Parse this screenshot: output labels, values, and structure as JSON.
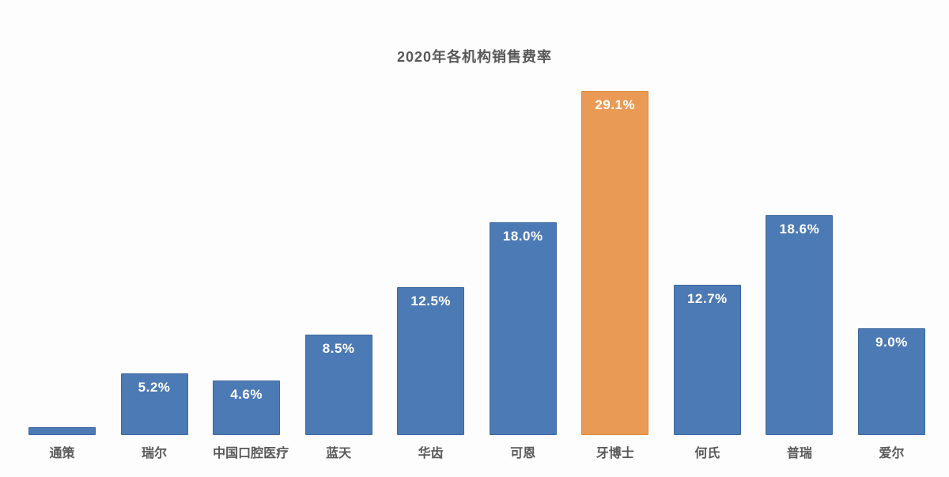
{
  "chart_data": {
    "type": "bar",
    "title": "2020年各机构销售费率",
    "xlabel": "",
    "ylabel": "",
    "categories": [
      "通策",
      "瑞尔",
      "中国口腔医疗",
      "蓝天",
      "华齿",
      "可恩",
      "牙博士",
      "何氏",
      "普瑞",
      "爱尔"
    ],
    "values": [
      0.7,
      5.2,
      4.6,
      8.5,
      12.5,
      18.0,
      29.1,
      12.7,
      18.6,
      9.0
    ],
    "data_labels": [
      "",
      "5.2%",
      "4.6%",
      "8.5%",
      "12.5%",
      "18.0%",
      "29.1%",
      "12.7%",
      "18.6%",
      "9.0%"
    ],
    "highlight_index": 6,
    "ylim": [
      0,
      30
    ],
    "grid": false,
    "legend": false,
    "axis_line": false,
    "colors": {
      "bar_fill": "#4C7AB4",
      "bar_border": "#3E689F",
      "highlight_fill": "#E99A55",
      "highlight_border": "#DD8A3E",
      "data_label_text": "#FFFFFF",
      "title_text": "#595959",
      "category_text": "#595959",
      "background": "#FDFDFD"
    }
  }
}
